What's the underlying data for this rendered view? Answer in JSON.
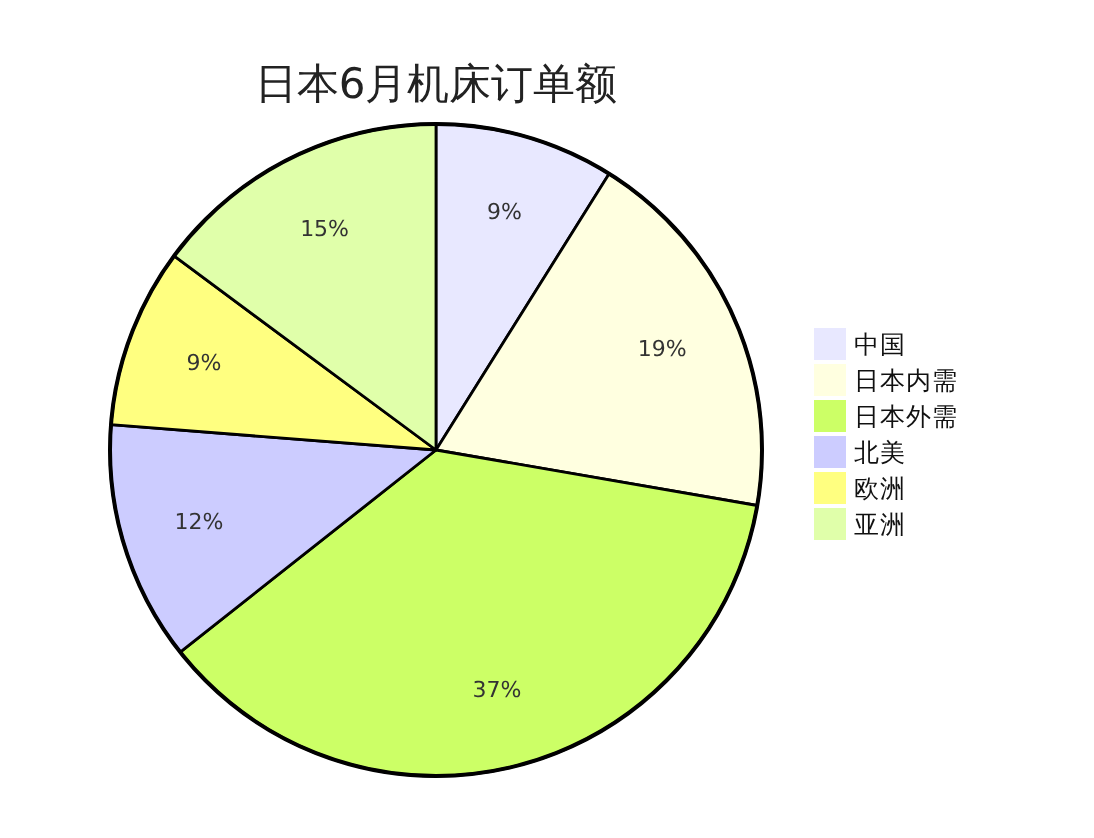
{
  "chart_data": {
    "type": "pie",
    "title": "日本6月机床订单额",
    "categories": [
      "中国",
      "日本内需",
      "日本外需",
      "北美",
      "欧洲",
      "亚洲"
    ],
    "values": [
      9,
      19,
      37,
      12,
      9,
      15
    ],
    "value_labels": [
      "9%",
      "19%",
      "37%",
      "12%",
      "9%",
      "15%"
    ],
    "colors": [
      "#e8e8ff",
      "#ffffe0",
      "#ccff66",
      "#ccccff",
      "#ffff80",
      "#e0ffaa"
    ],
    "legend": "right"
  }
}
